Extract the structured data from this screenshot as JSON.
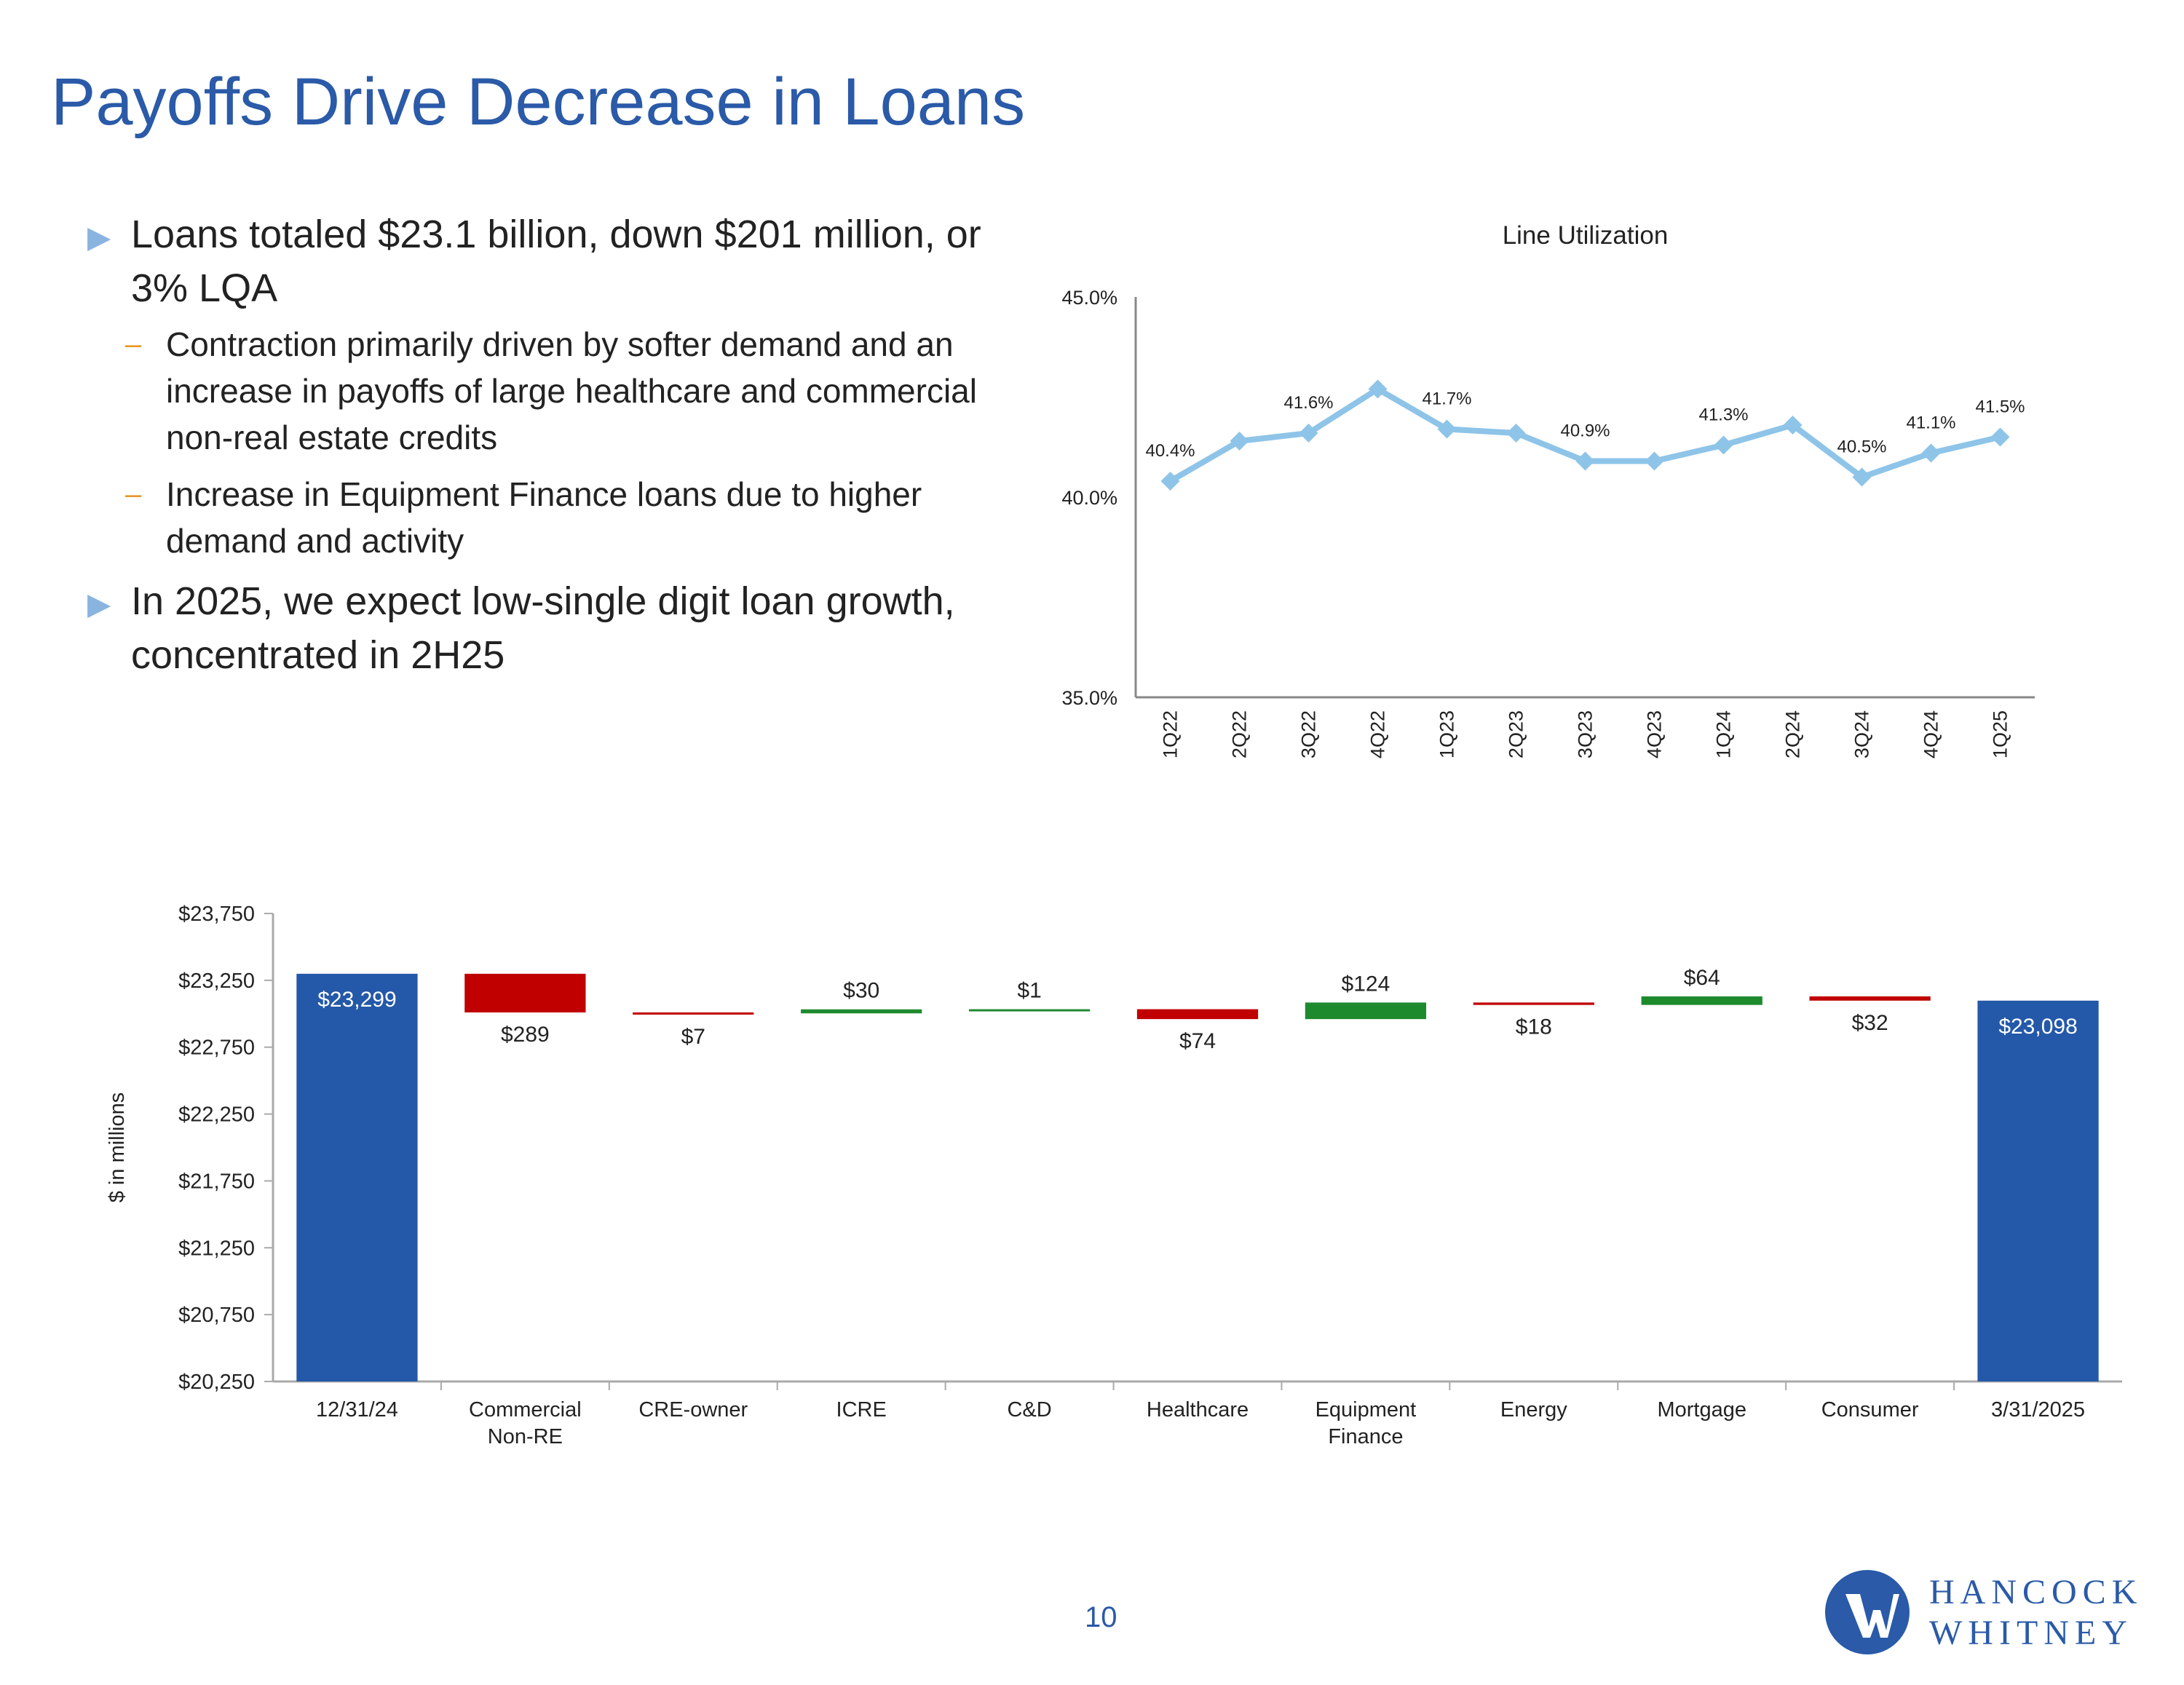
{
  "title": "Payoffs Drive Decrease in Loans",
  "bullets": [
    {
      "text": "Loans totaled $23.1 billion, down $201 million, or 3% LQA",
      "sub": [
        "Contraction primarily driven by softer demand and an increase in payoffs of large healthcare and commercial non-real estate credits",
        "Increase in Equipment Finance loans due to higher demand and activity"
      ]
    },
    {
      "text": "In 2025, we expect low-single digit loan growth, concentrated in 2H25",
      "sub": []
    }
  ],
  "chart_data": [
    {
      "type": "line",
      "title": "Line Utilization",
      "categories": [
        "1Q22",
        "2Q22",
        "3Q22",
        "4Q22",
        "1Q23",
        "2Q23",
        "3Q23",
        "4Q23",
        "1Q24",
        "2Q24",
        "3Q24",
        "4Q24",
        "1Q25"
      ],
      "values": [
        40.4,
        41.4,
        41.6,
        42.7,
        41.7,
        41.6,
        40.9,
        40.9,
        41.3,
        41.8,
        40.5,
        41.1,
        41.5
      ],
      "labels": [
        "40.4%",
        "",
        "41.6%",
        "",
        "41.7%",
        "",
        "40.9%",
        "",
        "41.3%",
        "",
        "40.5%",
        "41.1%",
        "41.5%"
      ],
      "yticks": [
        "35.0%",
        "40.0%",
        "45.0%"
      ],
      "ylim": [
        35,
        45
      ],
      "color": "#8ec4e8"
    },
    {
      "type": "bar",
      "subtype": "waterfall",
      "ylabel": "$ in millions",
      "categories": [
        "12/31/24",
        "Commercial Non-RE",
        "CRE-owner",
        "ICRE",
        "C&D",
        "Healthcare",
        "Equipment Finance",
        "Energy",
        "Mortgage",
        "Consumer",
        "3/31/2025"
      ],
      "category_lines": [
        [
          "12/31/24"
        ],
        [
          "Commercial",
          "Non-RE"
        ],
        [
          "CRE-owner"
        ],
        [
          "ICRE"
        ],
        [
          "C&D"
        ],
        [
          "Healthcare"
        ],
        [
          "Equipment",
          "Finance"
        ],
        [
          "Energy"
        ],
        [
          "Mortgage"
        ],
        [
          "Consumer"
        ],
        [
          "3/31/2025"
        ]
      ],
      "values": [
        23299,
        -289,
        -7,
        30,
        1,
        -74,
        124,
        -18,
        64,
        -32,
        23098
      ],
      "kinds": [
        "total",
        "decrease",
        "decrease",
        "increase",
        "increase",
        "decrease",
        "increase",
        "decrease",
        "increase",
        "decrease",
        "total"
      ],
      "value_labels": [
        "$23,299",
        "$289",
        "$7",
        "$30",
        "$1",
        "$74",
        "$124",
        "$18",
        "$64",
        "$32",
        "$23,098"
      ],
      "yticks": [
        "$20,250",
        "$20,750",
        "$21,250",
        "$21,750",
        "$22,250",
        "$22,750",
        "$23,250",
        "$23,750"
      ],
      "ylim": [
        20250,
        23750
      ],
      "colors": {
        "total": "#2458a8",
        "decrease": "#c00000",
        "increase": "#1e8a2e"
      }
    }
  ],
  "footer": {
    "page_number": "10",
    "logo_line1": "HANCOCK",
    "logo_line2": "WHITNEY",
    "brand_color": "#2a5aa8"
  }
}
